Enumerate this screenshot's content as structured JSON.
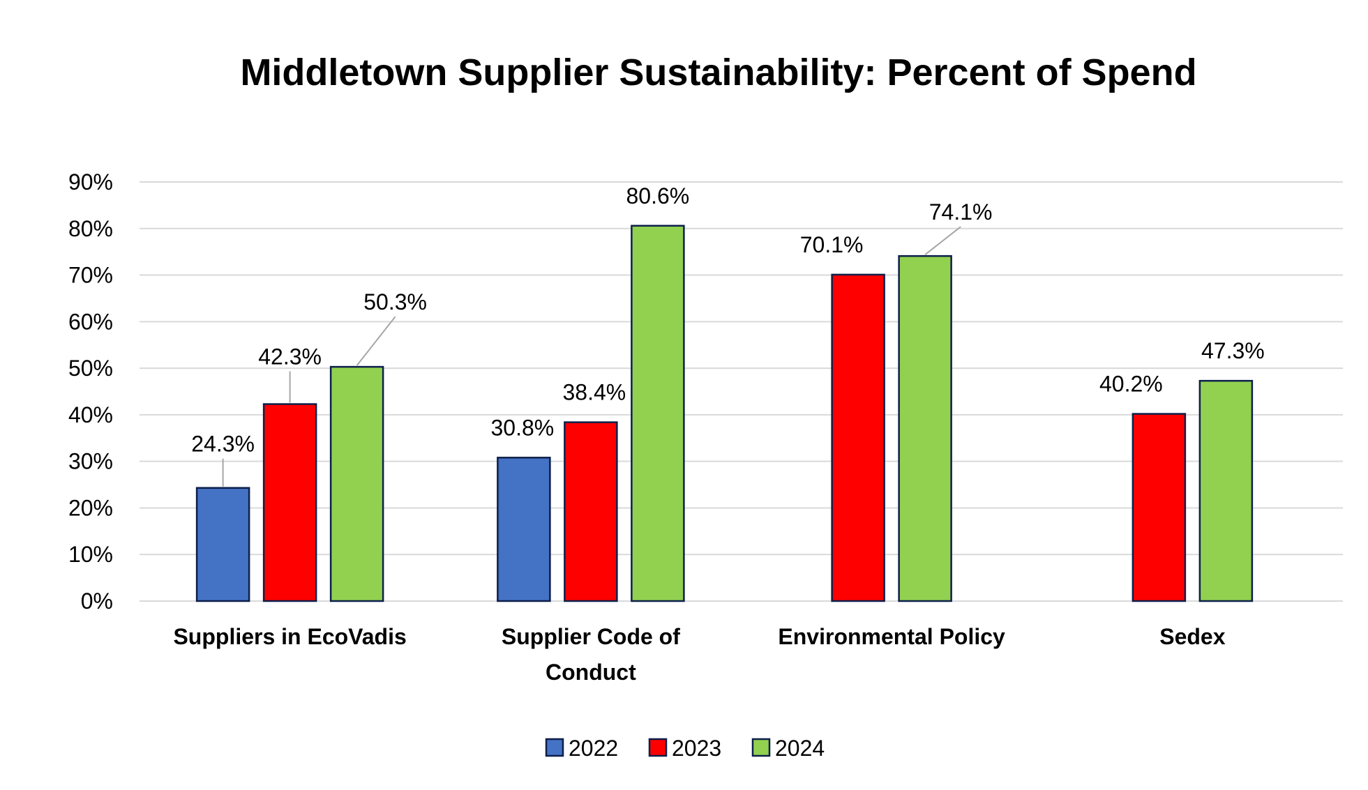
{
  "chart_data": {
    "type": "bar",
    "title": "Middletown Supplier Sustainability: Percent of Spend",
    "xlabel": "",
    "ylabel": "",
    "ylim": [
      0,
      90
    ],
    "y_ticks": [
      "0%",
      "10%",
      "20%",
      "30%",
      "40%",
      "50%",
      "60%",
      "70%",
      "80%",
      "90%"
    ],
    "categories": [
      [
        "Suppliers in EcoVadis"
      ],
      [
        "Supplier Code of",
        "Conduct"
      ],
      [
        "Environmental Policy"
      ],
      [
        "Sedex"
      ]
    ],
    "series": [
      {
        "name": "2022",
        "color": "#4472c4",
        "values": [
          24.3,
          30.8,
          null,
          null
        ],
        "labels": [
          "24.3%",
          "30.8%",
          "",
          ""
        ]
      },
      {
        "name": "2023",
        "color": "#ff0000",
        "values": [
          42.3,
          38.4,
          70.1,
          40.2
        ],
        "labels": [
          "42.3%",
          "38.4%",
          "70.1%",
          "40.2%"
        ]
      },
      {
        "name": "2024",
        "color": "#92d050",
        "values": [
          50.3,
          80.6,
          74.1,
          47.3
        ],
        "labels": [
          "50.3%",
          "80.6%",
          "74.1%",
          "47.3%"
        ]
      }
    ],
    "grid": true,
    "legend_position": "bottom"
  }
}
